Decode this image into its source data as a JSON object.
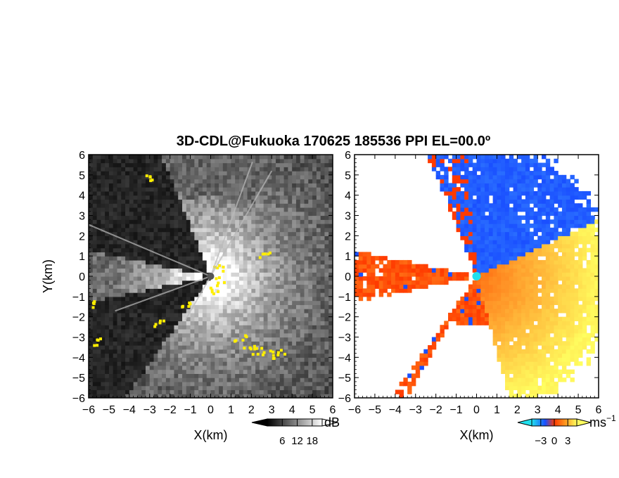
{
  "title": "3D-CDL@Fukuoka 170625 185536 PPI EL=00.0º",
  "chart_data": [
    {
      "type": "heatmap",
      "panel": "left",
      "quantity": "SNR",
      "xlabel": "X(km)",
      "ylabel": "Y(km)",
      "xlim": [
        -6,
        6
      ],
      "ylim": [
        -6,
        6
      ],
      "xticks": [
        "−6",
        "−5",
        "−4",
        "−3",
        "−2",
        "−1",
        "0",
        "1",
        "2",
        "3",
        "4",
        "5",
        "6"
      ],
      "yticks": [
        "6",
        "5",
        "4",
        "3",
        "2",
        "1",
        "0",
        "−1",
        "−2",
        "−3",
        "−4",
        "−5",
        "−6"
      ],
      "colorbar": {
        "unit": "dB",
        "tick_labels": [
          "6",
          "12",
          "18"
        ],
        "tick_values": [
          6,
          12,
          18
        ],
        "range": [
          0,
          22
        ]
      },
      "masked_sectors_deg": [
        [
          112,
          168
        ],
        [
          192,
          235
        ]
      ],
      "highlight_color": "#ffee00"
    },
    {
      "type": "heatmap",
      "panel": "right",
      "quantity": "Doppler velocity",
      "xlabel": "X(km)",
      "ylabel": "",
      "xlim": [
        -6,
        6
      ],
      "ylim": [
        -6,
        6
      ],
      "xticks": [
        "−6",
        "−5",
        "−4",
        "−3",
        "−2",
        "−1",
        "0",
        "1",
        "2",
        "3",
        "4",
        "5",
        "6"
      ],
      "yticks": [
        "6",
        "5",
        "4",
        "3",
        "2",
        "1",
        "0",
        "−1",
        "−2",
        "−3",
        "−4",
        "−5",
        "−6"
      ],
      "colorbar": {
        "unit": "ms",
        "unit_exp": "−1",
        "tick_labels": [
          "−3",
          "0",
          "3"
        ],
        "tick_values": [
          -3,
          0,
          3
        ],
        "range": [
          -5,
          5
        ]
      },
      "colors": {
        "negative": "#1a4fff",
        "zero": "#ff3a00",
        "positive": "#ffff60",
        "center": "#22e0ee"
      }
    }
  ]
}
